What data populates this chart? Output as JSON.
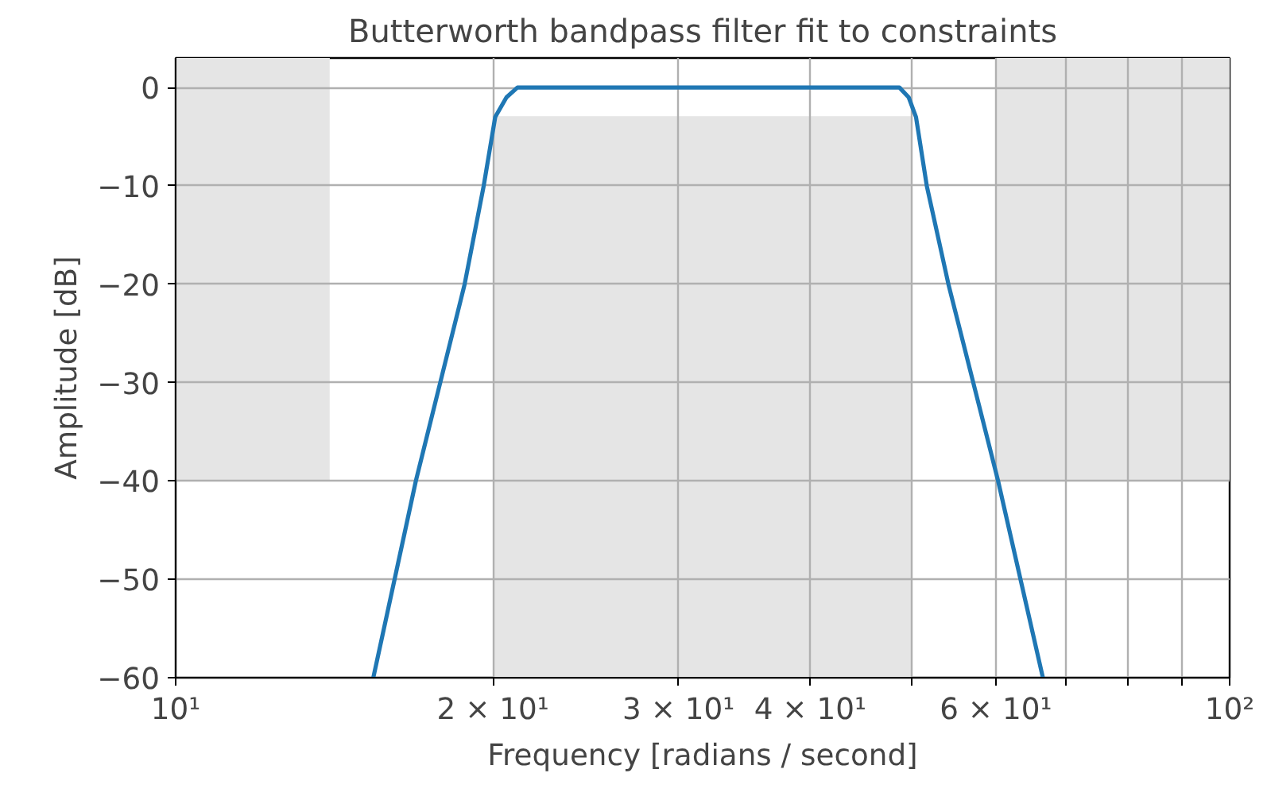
{
  "chart_data": {
    "type": "line",
    "title": "Butterworth bandpass filter fit to constraints",
    "xlabel": "Frequency [radians / second]",
    "ylabel": "Amplitude [dB]",
    "log": "x",
    "grid": true,
    "xlim": [
      10,
      100
    ],
    "ylim": [
      -60,
      3
    ],
    "xticks": [
      {
        "value": 10,
        "label": "10¹"
      },
      {
        "value": 20,
        "label": "2 × 10¹"
      },
      {
        "value": 30,
        "label": "3 × 10¹"
      },
      {
        "value": 40,
        "label": "4 × 10¹"
      },
      {
        "value": 50,
        "label": null
      },
      {
        "value": 60,
        "label": "6 × 10¹"
      },
      {
        "value": 70,
        "label": null
      },
      {
        "value": 80,
        "label": null
      },
      {
        "value": 90,
        "label": null
      },
      {
        "value": 100,
        "label": "10²"
      }
    ],
    "yticks": [
      {
        "value": -60,
        "label": "−60"
      },
      {
        "value": -50,
        "label": "−50"
      },
      {
        "value": -40,
        "label": "−40"
      },
      {
        "value": -30,
        "label": "−30"
      },
      {
        "value": -20,
        "label": "−20"
      },
      {
        "value": -10,
        "label": "−10"
      },
      0
    ],
    "series": [
      {
        "type": "bar",
        "color": "#e5e5e5",
        "x": [
          11.83,
          31.62,
          77.46
        ],
        "xerrors": [
          [
            10,
            14
          ],
          [
            20,
            50
          ],
          [
            60,
            100
          ]
        ],
        "base": [
          -40,
          -60,
          -40
        ],
        "values": [
          43,
          57,
          43
        ]
      },
      {
        "color": "#1f77b4",
        "x": [
          15.4,
          16.9,
          18.8,
          19.6,
          20.1,
          20.6,
          21.1,
          25,
          30,
          40,
          45,
          48.6,
          49.6,
          50.4,
          51.6,
          54.1,
          60.3,
          66.5
        ],
        "values": [
          -60,
          -40,
          -20,
          -10,
          -3,
          -1,
          0,
          0,
          0,
          0,
          0,
          0,
          -1,
          -3,
          -10,
          -20,
          -40,
          -60
        ]
      }
    ]
  }
}
